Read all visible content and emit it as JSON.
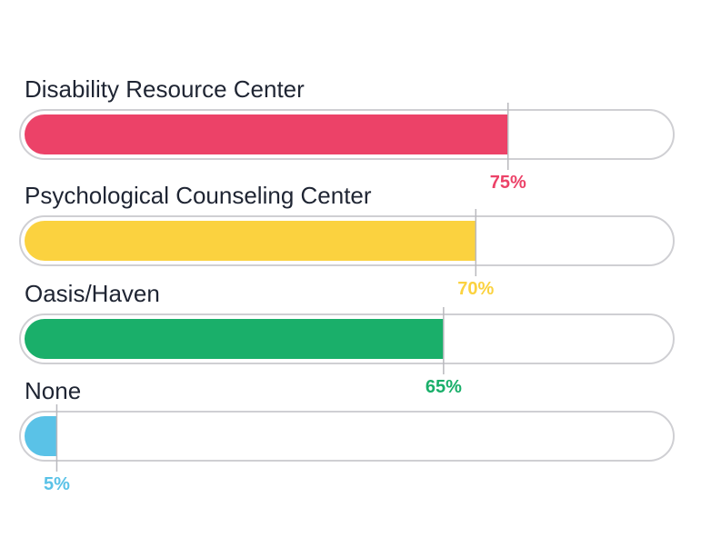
{
  "chart_data": {
    "type": "bar",
    "orientation": "horizontal",
    "categories": [
      "Disability Resource Center",
      "Psychological Counseling Center",
      "Oasis/Haven",
      "None"
    ],
    "values": [
      75,
      70,
      65,
      5
    ],
    "value_labels": [
      "75%",
      "70%",
      "65%",
      "5%"
    ],
    "colors": [
      "#ec4268",
      "#fbd23f",
      "#1aaf6a",
      "#5ac2e7"
    ],
    "xlim": [
      0,
      100
    ],
    "title": "",
    "xlabel": "",
    "ylabel": "",
    "grid": false,
    "legend": "none"
  }
}
